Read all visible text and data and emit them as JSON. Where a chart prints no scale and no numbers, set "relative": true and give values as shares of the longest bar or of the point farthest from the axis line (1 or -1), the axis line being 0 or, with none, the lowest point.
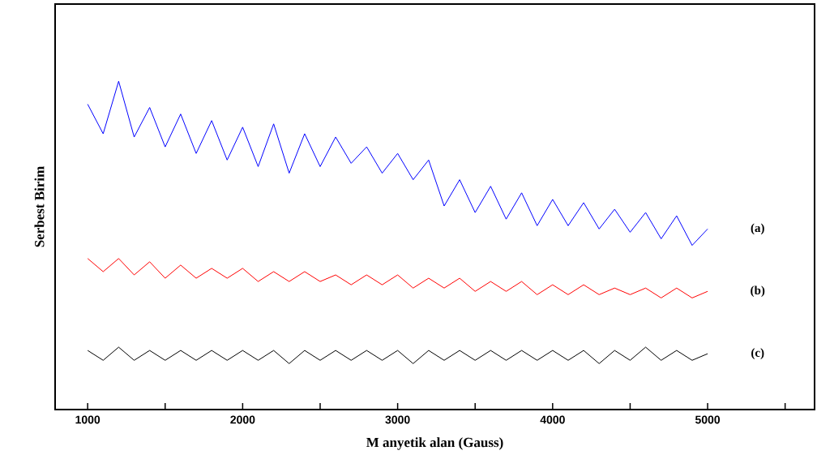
{
  "chart_data": {
    "type": "line",
    "xlabel": "M anyetik alan (Gauss)",
    "ylabel": "Serbest Birim",
    "relative": true,
    "xlim": [
      790,
      5690
    ],
    "xticks": [
      1000,
      {
        "value": 1500,
        "label": null
      },
      2000,
      {
        "value": 2500,
        "label": null
      },
      3000,
      {
        "value": 3500,
        "label": null
      },
      4000,
      {
        "value": 4500,
        "label": null
      },
      5000,
      {
        "value": 5500,
        "label": null
      }
    ],
    "x": [
      1000,
      1100,
      1200,
      1300,
      1400,
      1500,
      1600,
      1700,
      1800,
      1900,
      2000,
      2100,
      2200,
      2300,
      2400,
      2500,
      2600,
      2700,
      2800,
      2900,
      3000,
      3100,
      3200,
      3300,
      3400,
      3500,
      3600,
      3700,
      3800,
      3900,
      4000,
      4100,
      4200,
      4300,
      4400,
      4500,
      4600,
      4700,
      4800,
      4900,
      5000
    ],
    "series": [
      {
        "name": "(a)",
        "color": "#0000ff",
        "values": [
          0.93,
          0.84,
          1.0,
          0.83,
          0.92,
          0.8,
          0.9,
          0.78,
          0.88,
          0.76,
          0.86,
          0.74,
          0.87,
          0.72,
          0.84,
          0.74,
          0.83,
          0.75,
          0.8,
          0.72,
          0.78,
          0.7,
          0.76,
          0.62,
          0.7,
          0.6,
          0.68,
          0.58,
          0.66,
          0.56,
          0.64,
          0.56,
          0.63,
          0.55,
          0.61,
          0.54,
          0.6,
          0.52,
          0.59,
          0.5,
          0.55
        ]
      },
      {
        "name": "(b)",
        "color": "#ff0000",
        "values": [
          0.46,
          0.42,
          0.46,
          0.41,
          0.45,
          0.4,
          0.44,
          0.4,
          0.43,
          0.4,
          0.43,
          0.39,
          0.42,
          0.39,
          0.42,
          0.39,
          0.41,
          0.38,
          0.41,
          0.38,
          0.41,
          0.37,
          0.4,
          0.37,
          0.4,
          0.36,
          0.39,
          0.36,
          0.39,
          0.35,
          0.38,
          0.35,
          0.38,
          0.35,
          0.37,
          0.35,
          0.37,
          0.34,
          0.37,
          0.34,
          0.36
        ]
      },
      {
        "name": "(c)",
        "color": "#000000",
        "values": [
          0.18,
          0.15,
          0.19,
          0.15,
          0.18,
          0.15,
          0.18,
          0.15,
          0.18,
          0.15,
          0.18,
          0.15,
          0.18,
          0.14,
          0.18,
          0.15,
          0.18,
          0.15,
          0.18,
          0.15,
          0.18,
          0.14,
          0.18,
          0.15,
          0.18,
          0.15,
          0.18,
          0.15,
          0.18,
          0.15,
          0.18,
          0.15,
          0.18,
          0.14,
          0.18,
          0.15,
          0.19,
          0.15,
          0.18,
          0.15,
          0.17
        ]
      }
    ],
    "grid": false,
    "legend": false,
    "marker": "none",
    "line_style": "solid"
  }
}
